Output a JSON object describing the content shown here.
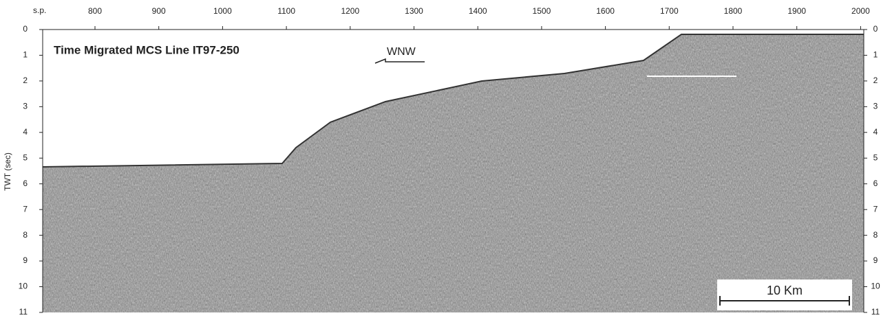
{
  "figure": {
    "title": "Time Migrated MCS Line IT97-250",
    "direction": "WNW",
    "scale_bar": "10 Km",
    "top_axis": {
      "label": "s.p.",
      "ticks": [
        800,
        900,
        1000,
        1100,
        1200,
        1300,
        1400,
        1500,
        1600,
        1700,
        1800,
        1900,
        2000
      ]
    },
    "left_axis": {
      "label": "TWT (sec)",
      "ticks": [
        0,
        1,
        2,
        3,
        4,
        5,
        6,
        7,
        8,
        9,
        10,
        11
      ]
    },
    "right_axis": {
      "ticks": [
        0,
        1,
        2,
        3,
        4,
        5,
        6,
        7,
        8,
        9,
        10,
        11
      ]
    }
  }
}
